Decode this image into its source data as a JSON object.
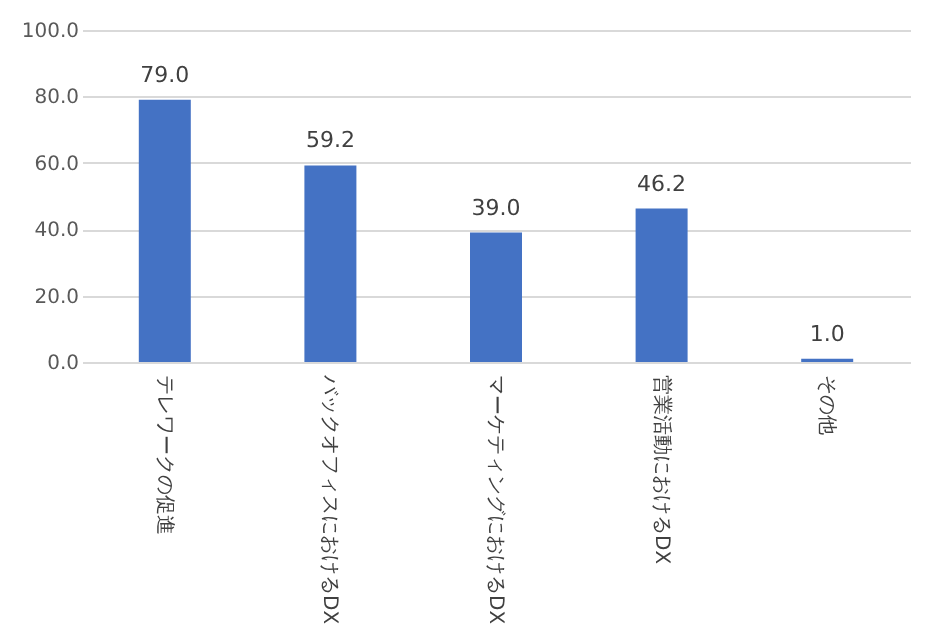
{
  "chart_data": {
    "type": "bar",
    "categories": [
      "テレワークの促進",
      "バックオフィスにおけるDX",
      "マーケティングにおけるDX",
      "営業活動におけるDX",
      "その他"
    ],
    "values": [
      79.0,
      59.2,
      39.0,
      46.2,
      1.0
    ],
    "value_labels": [
      "79.0",
      "59.2",
      "39.0",
      "46.2",
      "1.0"
    ],
    "color": "#4472c4",
    "ylim": [
      0,
      100
    ],
    "yticks": [
      {
        "value": 0,
        "label": "0.0"
      },
      {
        "value": 20,
        "label": "20.0"
      },
      {
        "value": 40,
        "label": "40.0"
      },
      {
        "value": 60,
        "label": "60.0"
      },
      {
        "value": 80,
        "label": "80.0"
      },
      {
        "value": 100,
        "label": "100.0"
      }
    ],
    "grid": "y"
  }
}
